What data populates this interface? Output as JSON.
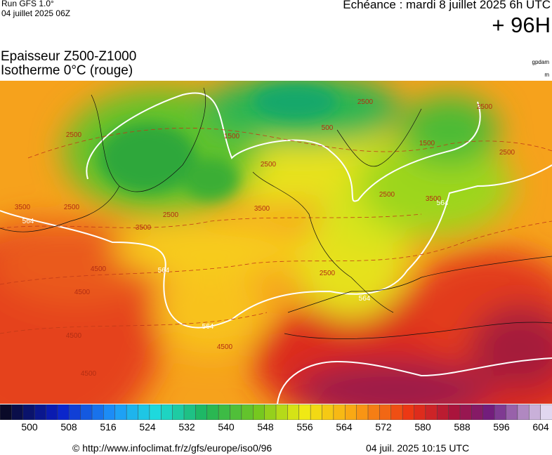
{
  "header": {
    "run": "Run GFS 1.0°",
    "run_date": "04 juillet 2025 06Z",
    "echeance": "Echéance : mardi 8 juillet 2025 6h UTC",
    "lead": "+ 96H"
  },
  "legend": {
    "line1": "Epaisseur Z500-Z1000",
    "line2": "Isotherme 0°C (rouge)",
    "unit1": "gpdam",
    "unit2": "m"
  },
  "map": {
    "contour_labels": [
      2500,
      1500,
      500,
      2500,
      2500,
      1500,
      2500,
      2500,
      3500,
      2500,
      2500,
      3500,
      3500,
      564,
      564,
      4500,
      4500,
      4500,
      4500,
      4500,
      564,
      564,
      3500,
      2500,
      2500,
      564
    ]
  },
  "colorbar": {
    "labels": [
      500,
      508,
      516,
      524,
      532,
      540,
      548,
      556,
      564,
      572,
      580,
      588,
      596,
      604
    ]
  },
  "footer": {
    "url": "© http://www.infoclimat.fr/z/gfs/europe/iso0/96",
    "timestamp": "04 juil. 2025 10:15 UTC"
  }
}
